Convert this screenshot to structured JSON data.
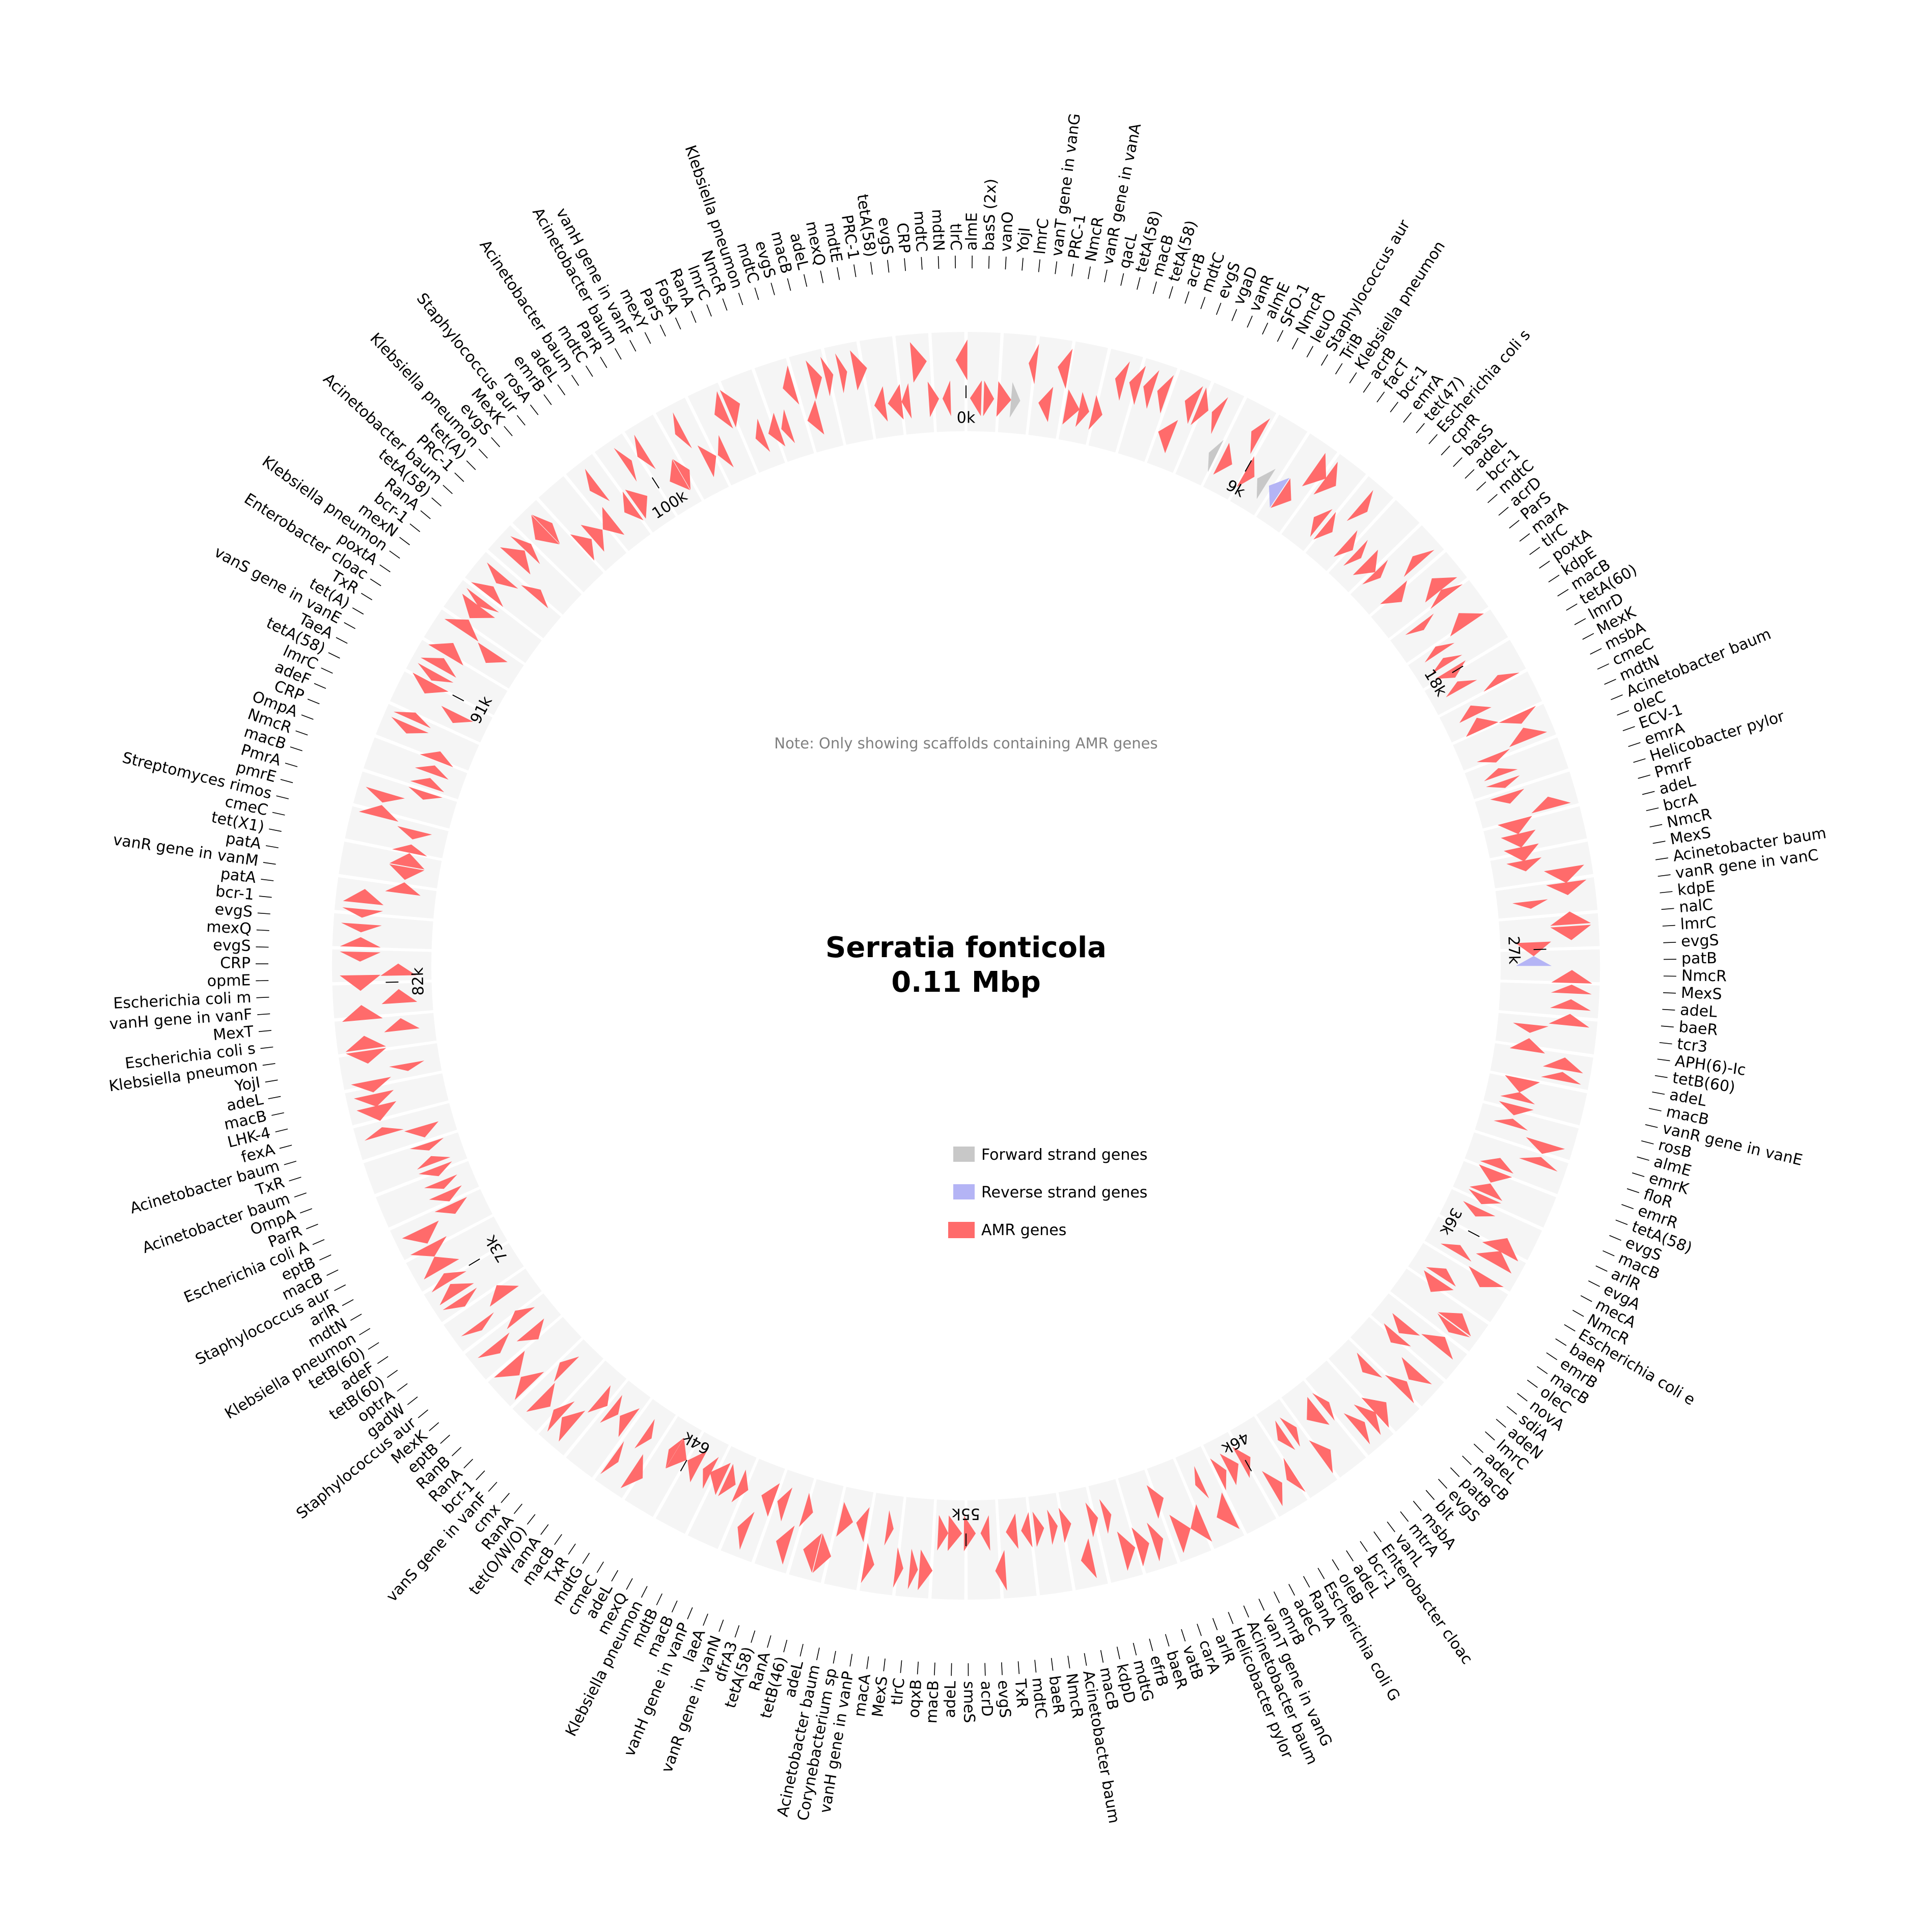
{
  "title": {
    "organism": "Serratia fonticola",
    "size": "0.11 Mbp"
  },
  "note": "Note: Only showing scaffolds containing AMR genes",
  "legend": [
    {
      "label": "Forward strand genes",
      "color": "#c8c8c8",
      "icon": "forward-strand-swatch"
    },
    {
      "label": "Reverse strand genes",
      "color": "#b4b4f5",
      "icon": "reverse-strand-swatch"
    },
    {
      "label": "AMR genes",
      "color": "#ff6b6b",
      "icon": "amr-swatch"
    }
  ],
  "colors": {
    "track": "#f5f5f5",
    "amr": "#ff6b6b",
    "forward": "#c8c8c8",
    "reverse": "#b4b4f5"
  },
  "chart_data": {
    "type": "circular-genome-map",
    "genome_length_kb": 110,
    "tick_labels": [
      "0k",
      "9k",
      "18k",
      "27k",
      "36k",
      "46k",
      "55k",
      "64k",
      "73k",
      "82k",
      "91k",
      "100k"
    ],
    "tick_positions_kb": [
      0,
      9,
      18,
      27,
      36,
      46,
      55,
      64,
      73,
      82,
      91,
      100
    ],
    "gene_labels": [
      "almE",
      "basS (2x)",
      "vanO",
      "YojI",
      "lmrC",
      "vanT gene in vanG",
      "PRC-1",
      "NmcR",
      "vanR gene in vanA",
      "qacL",
      "tetA(58)",
      "macB",
      "tetA(58)",
      "acrB",
      "mdtC",
      "evgS",
      "vgaD",
      "vanR",
      "almE",
      "SFO-1",
      "NmcR",
      "leuO",
      "Staphylococcus aur",
      "TriB",
      "Klebsiella pneumon",
      "acrB",
      "facT",
      "bcr-1",
      "emrA",
      "tet(47)",
      "Escherichia coli s",
      "cprR",
      "basS",
      "adeL",
      "bcr-1",
      "mdtC",
      "acrD",
      "ParS",
      "marA",
      "tlrC",
      "poxtA",
      "kdpE",
      "macB",
      "tetA(60)",
      "lmrD",
      "MexK",
      "msbA",
      "cmeC",
      "mdtN",
      "Acinetobacter baum",
      "oleC",
      "ECV-1",
      "emrA",
      "Helicobacter pylor",
      "PmrF",
      "adeL",
      "bcrA",
      "NmcR",
      "MexS",
      "Acinetobacter baum",
      "vanR gene in vanC",
      "kdpE",
      "nalC",
      "lmrC",
      "evgS",
      "patB",
      "NmcR",
      "MexS",
      "adeL",
      "baeR",
      "tcr3",
      "APH(6)-Ic",
      "tetB(60)",
      "adeL",
      "macB",
      "vanR gene in vanE",
      "rosB",
      "almE",
      "emrK",
      "floR",
      "emrR",
      "tetA(58)",
      "evgS",
      "macB",
      "arlR",
      "evgA",
      "mecA",
      "NmcR",
      "Escherichia coli e",
      "baeR",
      "emrB",
      "macB",
      "oleC",
      "novA",
      "sdiA",
      "adeN",
      "lmrC",
      "adeL",
      "macB",
      "patB",
      "evgS",
      "blt",
      "msbA",
      "mtrA",
      "vanL",
      "Enterobacter cloac",
      "bcr-1",
      "adeL",
      "oleB",
      "Escherichia coli G",
      "RanA",
      "adeC",
      "emrB",
      "vanT gene in vanG",
      "Acinetobacter baum",
      "Helicobacter pylor",
      "arlR",
      "carA",
      "vatB",
      "baeR",
      "efrB",
      "mdtG",
      "kdpD",
      "macB",
      "Acinetobacter baum",
      "NmcR",
      "baeR",
      "mdtC",
      "TxR",
      "evgS",
      "acrD",
      "smeS",
      "adeL",
      "macB",
      "oqxB",
      "tlrC",
      "MexS",
      "macA",
      "vanH gene in vanP",
      "Corynebacterium sp",
      "Acinetobacter baum",
      "adeL",
      "tetB(46)",
      "RanA",
      "tetA(58)",
      "dfrA3",
      "vanR gene in vanN",
      "laeA",
      "vanH gene in vanP",
      "macB",
      "mdtB",
      "Klebsiella pneumon",
      "mexQ",
      "adeL",
      "cmeC",
      "mdtG",
      "TxR",
      "macB",
      "ramA",
      "tet(O/W/O)",
      "RanA",
      "cmx",
      "vanS gene in vanF",
      "bcr-1",
      "RanA",
      "RanB",
      "eptB",
      "MexK",
      "Staphylococcus aur",
      "gadW",
      "optrA",
      "tetB(60)",
      "adeF",
      "tetB(60)",
      "Klebsiella pneumon",
      "mdtN",
      "arlR",
      "Staphylococcus aur",
      "macB",
      "eptB",
      "Escherichia coli A",
      "ParR",
      "OmpA",
      "Acinetobacter baum",
      "TxR",
      "Acinetobacter baum",
      "fexA",
      "LHK-4",
      "macB",
      "adeL",
      "YojI",
      "Klebsiella pneumon",
      "Escherichia coli s",
      "MexT",
      "vanH gene in vanF",
      "Escherichia coli m",
      "opmE",
      "CRP",
      "evgS",
      "mexQ",
      "evgS",
      "bcr-1",
      "patA",
      "vanR gene in vanM",
      "patA",
      "tet(X1)",
      "cmeC",
      "Streptomyces rimos",
      "pmrE",
      "PmrA",
      "macB",
      "NmcR",
      "OmpA",
      "CRP",
      "adeF",
      "lmrC",
      "tetA(58)",
      "TaeA",
      "vanS gene in vanE",
      "tet(A)",
      "TxR",
      "Enterobacter cloac",
      "poxtA",
      "Klebsiella pneumon",
      "mexN",
      "bcr-1",
      "RanA",
      "tetA(58)",
      "Acinetobacter baum",
      "PRC-1",
      "tet(A)",
      "Klebsiella pneumon",
      "evgS",
      "MexK",
      "Staphylococcus aur",
      "rosA",
      "emrB",
      "adeL",
      "Acinetobacter baum",
      "mdtC",
      "ParR",
      "Acinetobacter baum",
      "vanH gene in vanF",
      "mexY",
      "ParS",
      "FosA",
      "RanA",
      "lmrC",
      "NmcR",
      "Klebsiella pneumon",
      "mdtC",
      "evgS",
      "macB",
      "adeL",
      "mexQ",
      "mdtE",
      "PRC-1",
      "tetA(58)",
      "evgS",
      "CRP",
      "mdtC",
      "mdtN",
      "tlrC"
    ]
  }
}
